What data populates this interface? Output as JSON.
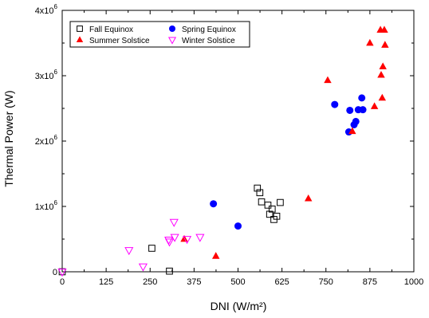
{
  "chart_data": {
    "type": "scatter",
    "title": "",
    "xlabel": "DNI (W/m²)",
    "ylabel": "Thermal Power (W)",
    "xlim": [
      0,
      1000
    ],
    "ylim": [
      0,
      4000000
    ],
    "grid": false,
    "legend_position": "top-left",
    "x_ticks": [
      {
        "value": 0,
        "label": "0"
      },
      {
        "value": 125,
        "label": "125"
      },
      {
        "value": 250,
        "label": "250"
      },
      {
        "value": 375,
        "label": "375"
      },
      {
        "value": 500,
        "label": "500"
      },
      {
        "value": 625,
        "label": "625"
      },
      {
        "value": 750,
        "label": "750"
      },
      {
        "value": 875,
        "label": "875"
      },
      {
        "value": 1000,
        "label": "1000"
      }
    ],
    "y_ticks": [
      {
        "value": 0,
        "base": "0",
        "exp": ""
      },
      {
        "value": 1000000,
        "base": "1x10",
        "exp": "6"
      },
      {
        "value": 2000000,
        "base": "2x10",
        "exp": "6"
      },
      {
        "value": 3000000,
        "base": "3x10",
        "exp": "6"
      },
      {
        "value": 4000000,
        "base": "4x10",
        "exp": "6"
      }
    ],
    "series": [
      {
        "name": "Fall Equinox",
        "marker": "square-open",
        "color": "#000000",
        "points": [
          [
            0,
            0
          ],
          [
            255,
            360000
          ],
          [
            305,
            10000
          ],
          [
            555,
            1280000
          ],
          [
            562,
            1210000
          ],
          [
            567,
            1070000
          ],
          [
            585,
            1020000
          ],
          [
            590,
            880000
          ],
          [
            597,
            960000
          ],
          [
            602,
            800000
          ],
          [
            610,
            850000
          ],
          [
            620,
            1060000
          ]
        ]
      },
      {
        "name": "Spring Equinox",
        "marker": "circle-filled",
        "color": "#0000ff",
        "points": [
          [
            430,
            1040000
          ],
          [
            500,
            700000
          ],
          [
            775,
            2560000
          ],
          [
            815,
            2140000
          ],
          [
            818,
            2470000
          ],
          [
            830,
            2250000
          ],
          [
            835,
            2300000
          ],
          [
            842,
            2480000
          ],
          [
            852,
            2660000
          ],
          [
            855,
            2480000
          ]
        ]
      },
      {
        "name": "Summer Solstice",
        "marker": "triangle-up-filled",
        "color": "#ff0000",
        "points": [
          [
            347,
            500000
          ],
          [
            437,
            240000
          ],
          [
            700,
            1120000
          ],
          [
            755,
            2930000
          ],
          [
            825,
            2150000
          ],
          [
            875,
            3500000
          ],
          [
            888,
            2530000
          ],
          [
            905,
            3700000
          ],
          [
            907,
            3010000
          ],
          [
            910,
            2660000
          ],
          [
            912,
            3140000
          ],
          [
            916,
            3700000
          ],
          [
            918,
            3470000
          ]
        ]
      },
      {
        "name": "Winter Solstice",
        "marker": "triangle-down-open",
        "color": "#ff00ff",
        "points": [
          [
            0,
            0
          ],
          [
            190,
            330000
          ],
          [
            230,
            80000
          ],
          [
            303,
            490000
          ],
          [
            305,
            460000
          ],
          [
            318,
            760000
          ],
          [
            320,
            530000
          ],
          [
            355,
            500000
          ],
          [
            392,
            530000
          ]
        ]
      }
    ]
  }
}
